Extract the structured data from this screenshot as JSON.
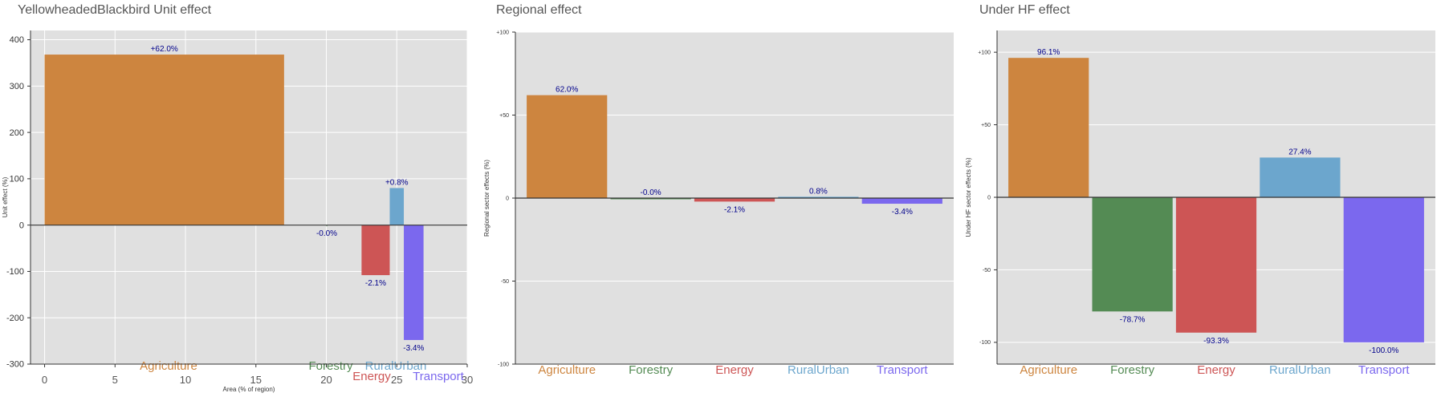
{
  "chart_data": [
    {
      "type": "bar",
      "title": "YellowheadedBlackbird Unit effect",
      "xlabel": "Area (% of region)",
      "ylabel": "Unit effect (%)",
      "xlim": [
        -1,
        30
      ],
      "ylim": [
        -300,
        420
      ],
      "xticks": [
        0,
        5,
        10,
        15,
        20,
        25,
        30
      ],
      "yticks": [
        -300,
        -200,
        -100,
        0,
        100,
        200,
        300,
        400
      ],
      "ytick_labels": [
        "-300",
        "-200",
        "-100",
        "0",
        "100",
        "200",
        "300",
        "400"
      ],
      "grid": true,
      "categories": [
        "Agriculture",
        "Forestry",
        "Energy",
        "RuralUrban",
        "Transport"
      ],
      "x_start": [
        0,
        20.0,
        22.5,
        24.5,
        25.5
      ],
      "widths": [
        17.0,
        0.05,
        2.0,
        1.0,
        1.4
      ],
      "values": [
        368,
        -0.5,
        -108,
        80,
        -248
      ],
      "data_labels": [
        "+62.0%",
        "-0.0%",
        "-2.1%",
        "+0.8%",
        "-3.4%"
      ],
      "colors": [
        "#cd853f",
        "#548b54",
        "#cd5555",
        "#6ca6cd",
        "#7b68ee"
      ]
    },
    {
      "type": "bar",
      "title": "Regional effect",
      "xlabel": "",
      "ylabel": "Regional sector effects (%)",
      "ylim": [
        -100,
        100
      ],
      "yticks": [
        -100,
        -50,
        0,
        50,
        100
      ],
      "ytick_labels": [
        "-100",
        "-50",
        "0",
        "+50",
        "+100"
      ],
      "grid": true,
      "categories": [
        "Agriculture",
        "Forestry",
        "Energy",
        "RuralUrban",
        "Transport"
      ],
      "values": [
        62.0,
        -0.0,
        -2.1,
        0.8,
        -3.4
      ],
      "data_labels": [
        "62.0%",
        "-0.0%",
        "-2.1%",
        "0.8%",
        "-3.4%"
      ],
      "colors": [
        "#cd853f",
        "#548b54",
        "#cd5555",
        "#6ca6cd",
        "#7b68ee"
      ]
    },
    {
      "type": "bar",
      "title": "Under HF effect",
      "xlabel": "",
      "ylabel": "Under HF sector effects (%)",
      "ylim": [
        -115,
        115
      ],
      "yticks": [
        -100,
        -50,
        0,
        50,
        100
      ],
      "ytick_labels": [
        "-100",
        "-50",
        "0",
        "+50",
        "+100"
      ],
      "grid": true,
      "categories": [
        "Agriculture",
        "Forestry",
        "Energy",
        "RuralUrban",
        "Transport"
      ],
      "values": [
        96.1,
        -78.7,
        -93.3,
        27.4,
        -100.0
      ],
      "data_labels": [
        "96.1%",
        "-78.7%",
        "-93.3%",
        "27.4%",
        "-100.0%"
      ],
      "colors": [
        "#cd853f",
        "#548b54",
        "#cd5555",
        "#6ca6cd",
        "#7b68ee"
      ]
    }
  ]
}
